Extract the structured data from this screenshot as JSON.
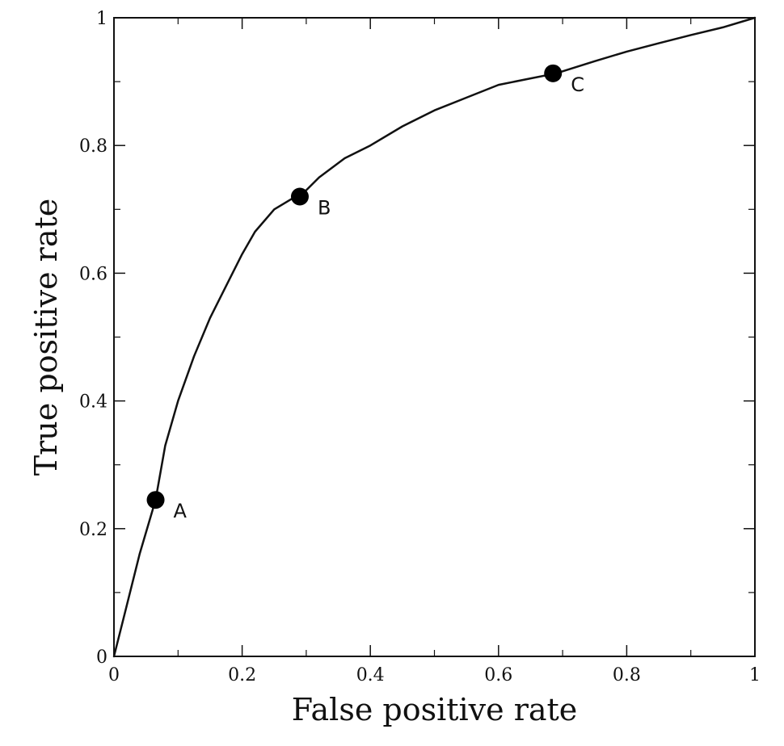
{
  "chart_data": {
    "type": "line",
    "title": "",
    "xlabel": "False positive rate",
    "ylabel": "True positive rate",
    "xlim": [
      0,
      1
    ],
    "ylim": [
      0,
      1
    ],
    "x_ticks": [
      {
        "value": 0,
        "label": "0"
      },
      {
        "value": 0.2,
        "label": "0.2"
      },
      {
        "value": 0.4,
        "label": "0.4"
      },
      {
        "value": 0.6,
        "label": "0.6"
      },
      {
        "value": 0.8,
        "label": "0.8"
      },
      {
        "value": 1,
        "label": "1"
      }
    ],
    "y_ticks": [
      {
        "value": 0,
        "label": "0"
      },
      {
        "value": 0.2,
        "label": "0.2"
      },
      {
        "value": 0.4,
        "label": "0.4"
      },
      {
        "value": 0.6,
        "label": "0.6"
      },
      {
        "value": 0.8,
        "label": "0.8"
      },
      {
        "value": 1,
        "label": "1"
      }
    ],
    "minor_ticks": [
      0.1,
      0.3,
      0.5,
      0.7,
      0.9
    ],
    "grid": false,
    "series": [
      {
        "x": [
          0,
          0.02,
          0.04,
          0.065,
          0.08,
          0.1,
          0.125,
          0.15,
          0.18,
          0.2,
          0.22,
          0.25,
          0.28,
          0.29,
          0.32,
          0.36,
          0.4,
          0.45,
          0.5,
          0.55,
          0.6,
          0.65,
          0.69,
          0.75,
          0.8,
          0.85,
          0.9,
          0.95,
          1.0
        ],
        "y": [
          0,
          0.08,
          0.16,
          0.245,
          0.33,
          0.4,
          0.47,
          0.53,
          0.59,
          0.63,
          0.665,
          0.7,
          0.718,
          0.72,
          0.75,
          0.78,
          0.8,
          0.83,
          0.855,
          0.875,
          0.895,
          0.905,
          0.913,
          0.932,
          0.947,
          0.96,
          0.973,
          0.985,
          1.0
        ]
      }
    ],
    "points": [
      {
        "label": "A",
        "x": 0.065,
        "y": 0.245
      },
      {
        "label": "B",
        "x": 0.29,
        "y": 0.72
      },
      {
        "label": "C",
        "x": 0.685,
        "y": 0.913
      }
    ],
    "colors": {
      "line": "#111111",
      "axis": "#111111",
      "marker": "#000000"
    }
  }
}
